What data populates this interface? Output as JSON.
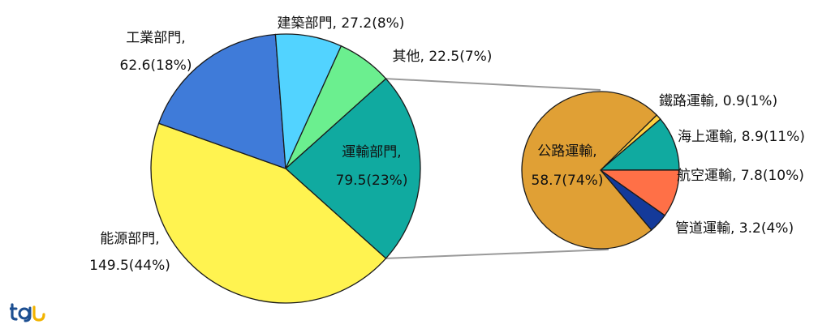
{
  "chart_data": [
    {
      "type": "pie",
      "categories": [
        "運輸部門",
        "能源部門",
        "工業部門",
        "建築部門",
        "其他"
      ],
      "values": [
        79.5,
        149.5,
        62.6,
        27.2,
        22.5
      ],
      "percent": [
        "23%",
        "44%",
        "18%",
        "8%",
        "7%"
      ],
      "colors": [
        "#10aaa0",
        "#fff350",
        "#3f7bd9",
        "#52d3ff",
        "#6bef8f"
      ],
      "labels": [
        {
          "line1": "運輸部門,",
          "line2": "79.5(23%)"
        },
        {
          "line1": "能源部門,",
          "line2": "149.5(44%)"
        },
        {
          "line1": "工業部門,",
          "line2": "62.6(18%)"
        },
        {
          "line1": "建築部門, 27.2(8%)"
        },
        {
          "line1": "其他, 22.5(7%)"
        }
      ]
    },
    {
      "type": "pie",
      "categories": [
        "公路運輸",
        "鐵路運輸",
        "海上運輸",
        "航空運輸",
        "管道運輸"
      ],
      "values": [
        58.7,
        0.9,
        8.9,
        7.8,
        3.2
      ],
      "percent": [
        "74%",
        "1%",
        "11%",
        "10%",
        "4%"
      ],
      "colors": [
        "#e0a035",
        "#ffd040",
        "#10aaa0",
        "#ff7047",
        "#143a9a"
      ],
      "labels": [
        {
          "line1": "公路運輸,",
          "line2": "58.7(74%)"
        },
        {
          "line1": "鐵路運輸, 0.9(1%)"
        },
        {
          "line1": "海上運輸, 8.9(11%)"
        },
        {
          "line1": "航空運輸, 7.8(10%)"
        },
        {
          "line1": "管道運輸, 3.2(4%)"
        }
      ]
    }
  ],
  "logo": {
    "text": "tej",
    "colors": [
      "#1d4f91",
      "#f2b300"
    ]
  }
}
